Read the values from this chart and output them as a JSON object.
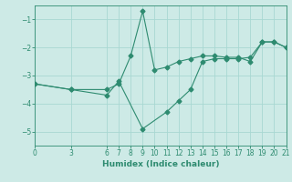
{
  "line1_x": [
    0,
    3,
    6,
    7,
    8,
    9,
    10,
    11,
    12,
    13,
    14,
    15,
    16,
    17,
    18,
    19,
    20,
    21
  ],
  "line1_y": [
    -3.3,
    -3.5,
    -3.5,
    -3.3,
    -2.3,
    -0.7,
    -2.8,
    -2.7,
    -2.5,
    -2.4,
    -2.3,
    -2.3,
    -2.35,
    -2.35,
    -2.5,
    -1.8,
    -1.8,
    -2.0
  ],
  "line2_x": [
    0,
    3,
    6,
    7,
    9,
    11,
    12,
    13,
    14,
    15,
    16,
    17,
    18,
    19,
    20,
    21
  ],
  "line2_y": [
    -3.3,
    -3.5,
    -3.7,
    -3.2,
    -4.9,
    -4.3,
    -3.9,
    -3.5,
    -2.5,
    -2.4,
    -2.4,
    -2.4,
    -2.35,
    -1.8,
    -1.8,
    -2.0
  ],
  "line_color": "#2e8b70",
  "bg_color": "#cdeae6",
  "grid_color": "#a8d8d2",
  "xlabel": "Humidex (Indice chaleur)",
  "xlim": [
    0,
    21
  ],
  "ylim": [
    -5.5,
    -0.5
  ],
  "yticks": [
    -5,
    -4,
    -3,
    -2,
    -1
  ],
  "xticks": [
    0,
    3,
    6,
    7,
    8,
    9,
    10,
    11,
    12,
    13,
    14,
    15,
    16,
    17,
    18,
    19,
    20,
    21
  ]
}
